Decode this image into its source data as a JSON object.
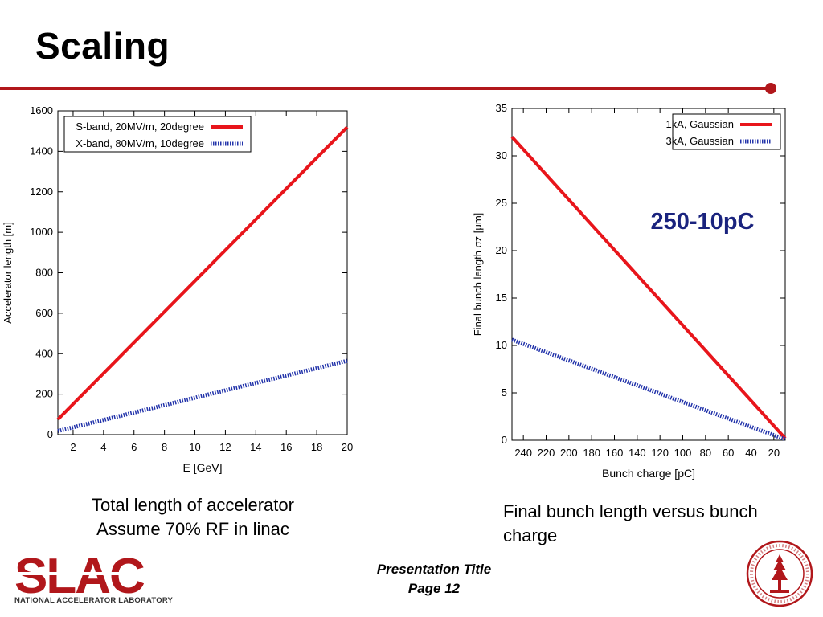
{
  "slide": {
    "title": "Scaling",
    "accent_color": "#b1171b",
    "callout": "250-10pC",
    "caption_left": [
      "Total length of accelerator",
      "Assume 70% RF in linac"
    ],
    "caption_right": "Final bunch length versus bunch charge",
    "footer_title": "Presentation Title",
    "footer_page": "Page 12",
    "logo_text": "SLAC",
    "logo_subtitle": "NATIONAL ACCELERATOR LABORATORY",
    "seal_icon": "stanford-seal-icon"
  },
  "chart_data": [
    {
      "type": "line",
      "xlabel": "E [GeV]",
      "ylabel": "Accelerator length [m]",
      "xlim": [
        1,
        20
      ],
      "ylim": [
        0,
        1600
      ],
      "xticks": [
        2,
        4,
        6,
        8,
        10,
        12,
        14,
        16,
        18,
        20
      ],
      "yticks": [
        0,
        200,
        400,
        600,
        800,
        1000,
        1200,
        1400,
        1600
      ],
      "legend_position": "top-left",
      "grid": false,
      "series": [
        {
          "name": "S-band, 20MV/m, 20degree",
          "color": "#e8151b",
          "style": "solid",
          "x": [
            1,
            20
          ],
          "y": [
            75,
            1520
          ]
        },
        {
          "name": "X-band, 80MV/m, 10degree",
          "color": "#2233aa",
          "style": "dotted",
          "x": [
            1,
            20
          ],
          "y": [
            18,
            365
          ]
        }
      ]
    },
    {
      "type": "line",
      "xlabel": "Bunch charge [pC]",
      "ylabel": "Final bunch length σz [μm]",
      "xlim": [
        250,
        10
      ],
      "ylim": [
        0,
        35
      ],
      "xticks": [
        240,
        220,
        200,
        180,
        160,
        140,
        120,
        100,
        80,
        60,
        40,
        20
      ],
      "yticks": [
        0,
        5,
        10,
        15,
        20,
        25,
        30,
        35
      ],
      "x_reversed": true,
      "legend_position": "top-right",
      "grid": false,
      "series": [
        {
          "name": "1kA, Gaussian",
          "color": "#e8151b",
          "style": "solid",
          "x": [
            250,
            10
          ],
          "y": [
            32,
            0.2
          ]
        },
        {
          "name": "3kA, Gaussian",
          "color": "#2233aa",
          "style": "dotted",
          "x": [
            250,
            10
          ],
          "y": [
            10.6,
            0.1
          ]
        }
      ]
    }
  ]
}
